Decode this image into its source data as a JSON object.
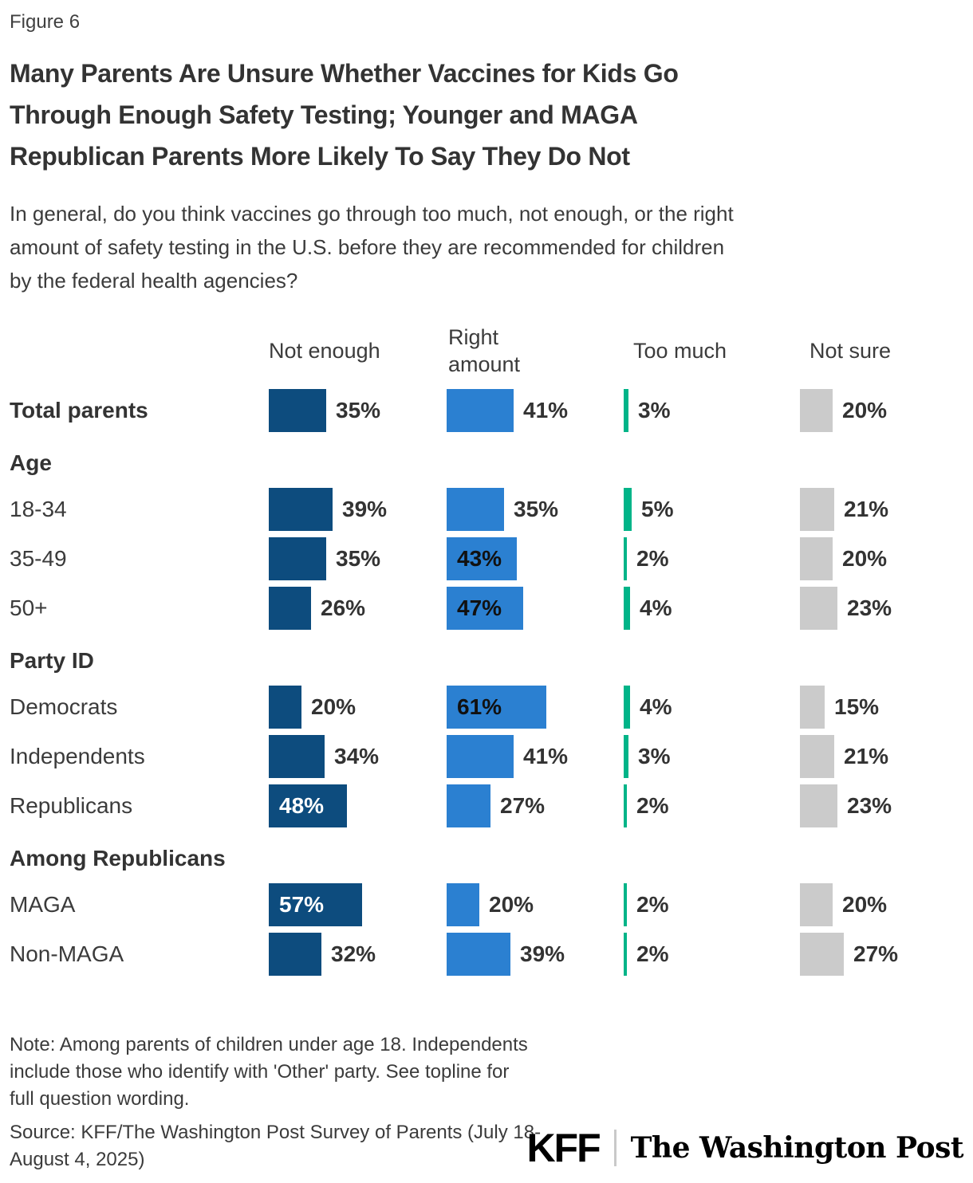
{
  "figure_label": "Figure 6",
  "title": {
    "lines": [
      "Many Parents Are Unsure Whether Vaccines for Kids Go",
      "Through Enough Safety Testing; Younger and MAGA",
      "Republican Parents More Likely To Say They Do Not"
    ]
  },
  "subtitle": {
    "lines": [
      "In general, do you think vaccines go through too much, not enough, or the right",
      "amount of safety testing in the U.S. before they are recommended for children",
      "by the federal health agencies?"
    ]
  },
  "chart_data": {
    "type": "bar",
    "orientation": "horizontal",
    "title": "Many Parents Are Unsure Whether Vaccines for Kids Go Through Enough Safety Testing; Younger and MAGA Republican Parents More Likely To Say They Do Not",
    "question": "In general, do you think vaccines go through too much, not enough, or the right amount of safety testing in the U.S. before they are recommended for children by the federal health agencies?",
    "unit": "%",
    "value_range": [
      0,
      100
    ],
    "grid": false,
    "legend_position": "column-headers-top",
    "columns": [
      {
        "label": "Not enough",
        "color": "#0D4C7E",
        "inside_label_color": "#ffffff"
      },
      {
        "label": "Right amount",
        "color": "#2B80D1",
        "inside_label_color": "#111111"
      },
      {
        "label": "Too much",
        "color": "#00B488",
        "inside_label_color": "#111111"
      },
      {
        "label": "Not sure",
        "color": "#CBCBCB",
        "inside_label_color": "#111111"
      }
    ],
    "rows": [
      {
        "kind": "data",
        "label": "Total parents",
        "bold": true,
        "values": [
          35,
          41,
          3,
          20
        ]
      },
      {
        "kind": "section",
        "label": "Age"
      },
      {
        "kind": "data",
        "label": "18-34",
        "bold": false,
        "values": [
          39,
          35,
          5,
          21
        ]
      },
      {
        "kind": "data",
        "label": "35-49",
        "bold": false,
        "values": [
          35,
          43,
          2,
          20
        ]
      },
      {
        "kind": "data",
        "label": "50+",
        "bold": false,
        "values": [
          26,
          47,
          4,
          23
        ]
      },
      {
        "kind": "section",
        "label": "Party ID"
      },
      {
        "kind": "data",
        "label": "Democrats",
        "bold": false,
        "values": [
          20,
          61,
          4,
          15
        ]
      },
      {
        "kind": "data",
        "label": "Independents",
        "bold": false,
        "values": [
          34,
          41,
          3,
          21
        ]
      },
      {
        "kind": "data",
        "label": "Republicans",
        "bold": false,
        "values": [
          48,
          27,
          2,
          23
        ]
      },
      {
        "kind": "section",
        "label": "Among Republicans"
      },
      {
        "kind": "data",
        "label": "MAGA",
        "bold": false,
        "values": [
          57,
          20,
          2,
          20
        ]
      },
      {
        "kind": "data",
        "label": "Non-MAGA",
        "bold": false,
        "values": [
          32,
          39,
          2,
          27
        ]
      }
    ]
  },
  "note": {
    "lines": [
      "Note: Among parents of children under age 18. Independents",
      "include those who identify with 'Other' party. See topline for",
      "full question wording."
    ]
  },
  "source": {
    "lines": [
      "Source: KFF/The Washington Post Survey of Parents (July 18-",
      "August 4, 2025)"
    ]
  },
  "logos": {
    "kff": "KFF",
    "wapo": "The Washington Post"
  }
}
